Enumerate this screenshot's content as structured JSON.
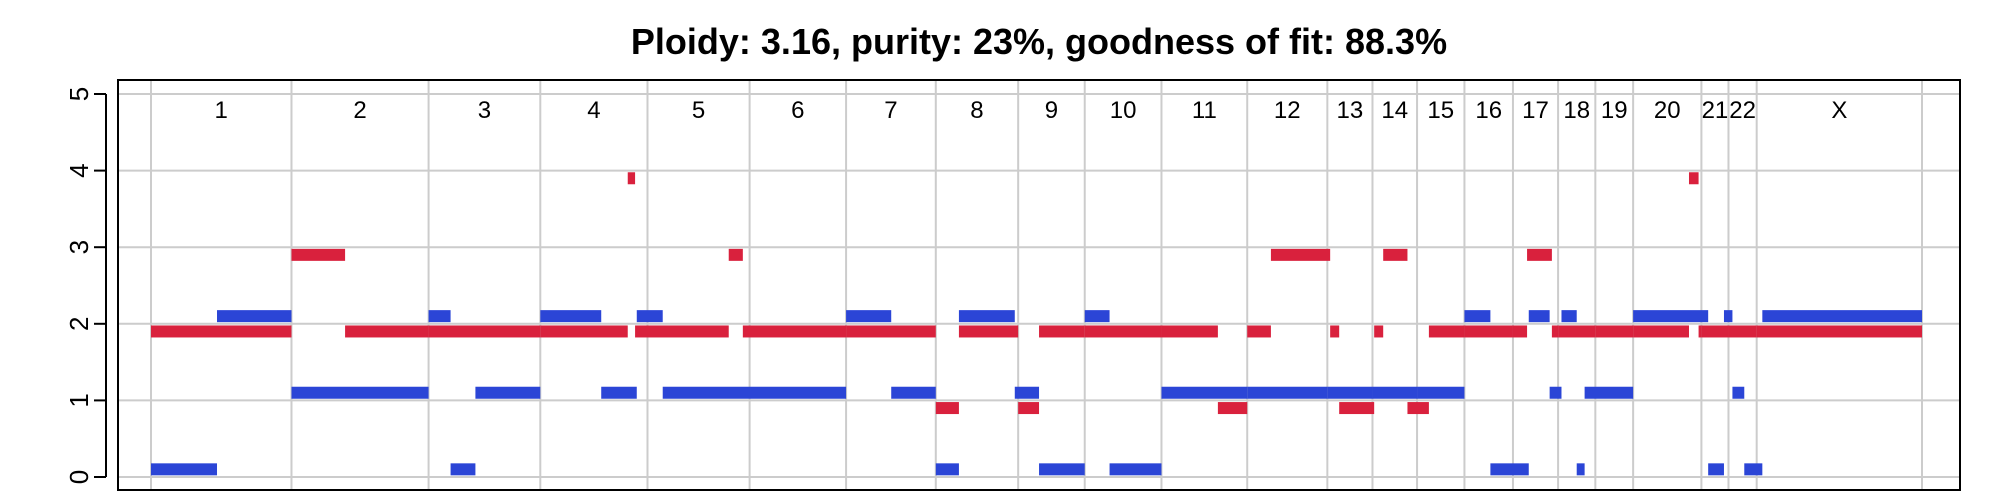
{
  "chart_data": {
    "type": "segment",
    "title": "Ploidy: 3.16, purity: 23%, goodness of fit: 88.3%",
    "xlabel": "",
    "ylabel": "",
    "ylim": [
      0,
      5
    ],
    "yticks": [
      "0",
      "1",
      "2",
      "3",
      "4",
      "5"
    ],
    "grid": true,
    "colors": {
      "major": "#d9213d",
      "minor": "#2b45d6",
      "grid": "#cccccc"
    },
    "chromosomes": [
      {
        "label": "1",
        "start": 0,
        "end": 249
      },
      {
        "label": "2",
        "start": 249,
        "end": 492
      },
      {
        "label": "3",
        "start": 492,
        "end": 690
      },
      {
        "label": "4",
        "start": 690,
        "end": 880
      },
      {
        "label": "5",
        "start": 880,
        "end": 1061
      },
      {
        "label": "6",
        "start": 1061,
        "end": 1232
      },
      {
        "label": "7",
        "start": 1232,
        "end": 1391
      },
      {
        "label": "8",
        "start": 1391,
        "end": 1537
      },
      {
        "label": "9",
        "start": 1537,
        "end": 1655
      },
      {
        "label": "10",
        "start": 1655,
        "end": 1791
      },
      {
        "label": "11",
        "start": 1791,
        "end": 1943
      },
      {
        "label": "12",
        "start": 1943,
        "end": 2085
      },
      {
        "label": "13",
        "start": 2085,
        "end": 2165
      },
      {
        "label": "14",
        "start": 2165,
        "end": 2244
      },
      {
        "label": "15",
        "start": 2244,
        "end": 2328
      },
      {
        "label": "16",
        "start": 2328,
        "end": 2414
      },
      {
        "label": "17",
        "start": 2414,
        "end": 2494
      },
      {
        "label": "18",
        "start": 2494,
        "end": 2560
      },
      {
        "label": "19",
        "start": 2560,
        "end": 2627
      },
      {
        "label": "20",
        "start": 2627,
        "end": 2748
      },
      {
        "label": "21",
        "start": 2748,
        "end": 2796
      },
      {
        "label": "22",
        "start": 2796,
        "end": 2846
      },
      {
        "label": "X",
        "start": 2846,
        "end": 3139
      }
    ],
    "series": [
      {
        "key": "major",
        "segments": [
          [
            0,
            249,
            1.9
          ],
          [
            249,
            344,
            2.9
          ],
          [
            344,
            492,
            1.9
          ],
          [
            492,
            690,
            1.9
          ],
          [
            690,
            845,
            1.9
          ],
          [
            845,
            858,
            3.9
          ],
          [
            858,
            1024,
            1.9
          ],
          [
            1024,
            1049,
            2.9
          ],
          [
            1049,
            1232,
            1.9
          ],
          [
            1232,
            1391,
            1.9
          ],
          [
            1391,
            1432,
            0.9
          ],
          [
            1432,
            1537,
            1.9
          ],
          [
            1537,
            1574,
            0.9
          ],
          [
            1574,
            1655,
            1.9
          ],
          [
            1655,
            1791,
            1.9
          ],
          [
            1791,
            1891,
            1.9
          ],
          [
            1891,
            1943,
            0.9
          ],
          [
            1943,
            1985,
            1.9
          ],
          [
            1985,
            2090,
            2.9
          ],
          [
            2090,
            2106,
            1.9
          ],
          [
            2106,
            2168,
            0.9
          ],
          [
            2168,
            2184,
            1.9
          ],
          [
            2184,
            2227,
            2.9
          ],
          [
            2227,
            2265,
            0.9
          ],
          [
            2265,
            2328,
            1.9
          ],
          [
            2328,
            2414,
            1.9
          ],
          [
            2414,
            2439,
            1.9
          ],
          [
            2439,
            2483,
            2.9
          ],
          [
            2483,
            2494,
            1.9
          ],
          [
            2494,
            2560,
            1.9
          ],
          [
            2560,
            2627,
            1.9
          ],
          [
            2627,
            2726,
            1.9
          ],
          [
            2726,
            2743,
            3.9
          ],
          [
            2743,
            2748,
            1.9
          ],
          [
            2748,
            2796,
            1.9
          ],
          [
            2796,
            2846,
            1.9
          ],
          [
            2846,
            3139,
            1.9
          ]
        ]
      },
      {
        "key": "minor",
        "segments": [
          [
            0,
            117,
            0.1
          ],
          [
            117,
            249,
            2.1
          ],
          [
            249,
            492,
            1.1
          ],
          [
            492,
            531,
            2.1
          ],
          [
            531,
            575,
            0.1
          ],
          [
            575,
            690,
            1.1
          ],
          [
            690,
            798,
            2.1
          ],
          [
            798,
            861,
            1.1
          ],
          [
            861,
            907,
            2.1
          ],
          [
            907,
            1232,
            1.1
          ],
          [
            1232,
            1312,
            2.1
          ],
          [
            1312,
            1391,
            1.1
          ],
          [
            1391,
            1432,
            0.1
          ],
          [
            1432,
            1531,
            2.1
          ],
          [
            1531,
            1574,
            1.1
          ],
          [
            1574,
            1655,
            0.1
          ],
          [
            1655,
            1699,
            2.1
          ],
          [
            1699,
            1791,
            0.1
          ],
          [
            1791,
            1943,
            1.1
          ],
          [
            1943,
            2085,
            1.1
          ],
          [
            2085,
            2165,
            1.1
          ],
          [
            2165,
            2244,
            1.1
          ],
          [
            2244,
            2328,
            1.1
          ],
          [
            2328,
            2374,
            2.1
          ],
          [
            2374,
            2442,
            0.1
          ],
          [
            2442,
            2479,
            2.1
          ],
          [
            2479,
            2500,
            1.1
          ],
          [
            2500,
            2527,
            2.1
          ],
          [
            2527,
            2541,
            0.1
          ],
          [
            2541,
            2627,
            1.1
          ],
          [
            2627,
            2760,
            2.1
          ],
          [
            2760,
            2788,
            0.1
          ],
          [
            2788,
            2803,
            2.1
          ],
          [
            2803,
            2824,
            1.1
          ],
          [
            2824,
            2856,
            0.1
          ],
          [
            2856,
            3139,
            2.1
          ]
        ]
      }
    ]
  }
}
